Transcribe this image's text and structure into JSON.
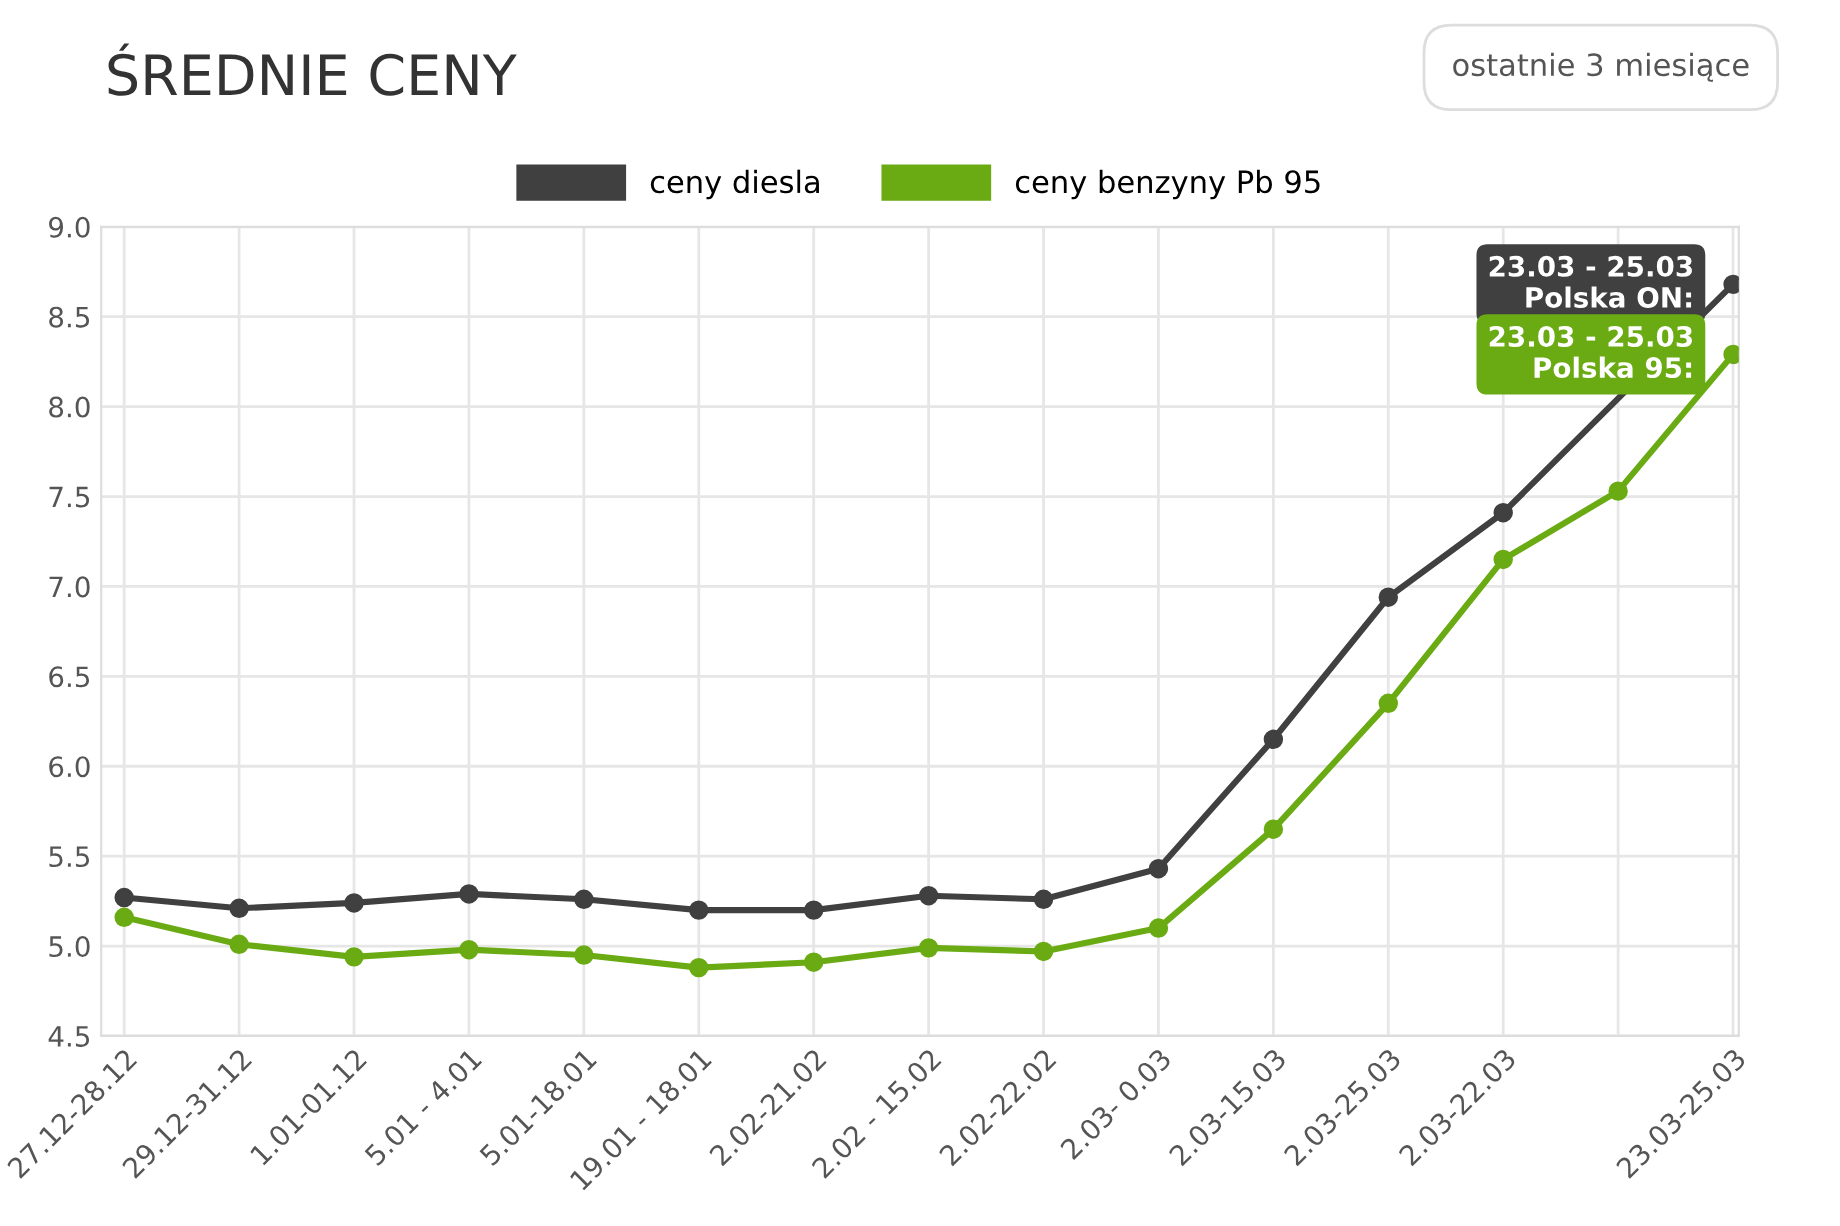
{
  "chart_data": {
    "type": "line",
    "title": "ŚREDNIE CENY",
    "categories": [
      "27.12-28.12",
      "29.12-31.12",
      "1.01-01.12",
      "5.01 - 4.01",
      "5.01-18.01",
      "19.01 - 18.01",
      "2.02-21.02",
      "2.02 - 15.02",
      "2.02-22.02",
      "2.03- 0.03",
      "2.03-15.03",
      "2.03-25.03",
      "2.03-22.03",
      null,
      "23.03-25.03"
    ],
    "series": [
      {
        "name": "ceny diesla",
        "color": "#404040",
        "values": [
          5.27,
          5.21,
          5.24,
          5.29,
          5.26,
          5.2,
          5.2,
          5.28,
          5.26,
          5.43,
          6.15,
          6.94,
          7.41,
          null,
          8.68
        ]
      },
      {
        "name": "ceny benzyny Pb 95",
        "color": "#6aab14",
        "values": [
          5.16,
          5.01,
          4.94,
          4.98,
          4.95,
          4.88,
          4.91,
          4.99,
          4.97,
          5.1,
          5.65,
          6.35,
          7.15,
          7.53,
          8.29
        ]
      }
    ],
    "ylim": [
      4.5,
      9.0
    ],
    "yticks": [
      4.5,
      {
        "value": 5,
        "label": "5.0"
      },
      5.5,
      {
        "value": 6,
        "label": "6.0"
      },
      6.5,
      {
        "value": 7,
        "label": "7.0"
      },
      7.5,
      {
        "value": 8,
        "label": "8.0"
      },
      8.5,
      {
        "value": 9,
        "label": "9.0"
      }
    ],
    "grid": true,
    "legend": "top",
    "marker": "circle",
    "line_style": "solid",
    "annotations": [
      "ostatnie 3 miesiące",
      {
        "text": "23.03 - 25.03\nPolska ON:",
        "x": "23.03-25.03",
        "y": 8.68
      },
      {
        "text": "23.03 - 25.03\nPolska 95:",
        "x": "23.03-25.03",
        "y": 8.29
      }
    ]
  }
}
